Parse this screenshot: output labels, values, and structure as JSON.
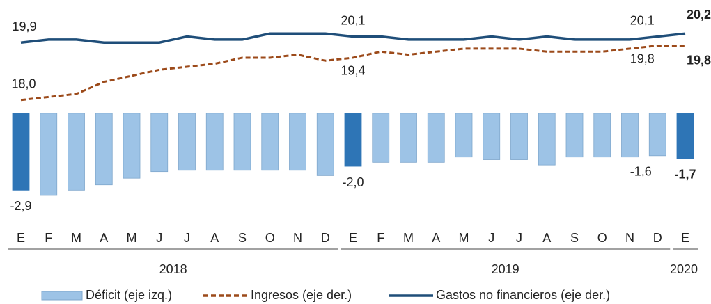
{
  "chart_data": {
    "type": "bar-line",
    "categories": [
      "E",
      "F",
      "M",
      "A",
      "M",
      "J",
      "J",
      "A",
      "S",
      "O",
      "N",
      "D",
      "E",
      "F",
      "M",
      "A",
      "M",
      "J",
      "J",
      "A",
      "S",
      "O",
      "N",
      "D",
      "E"
    ],
    "groups": [
      {
        "label": "2018",
        "span": 12
      },
      {
        "label": "2019",
        "span": 12
      },
      {
        "label": "2020",
        "span": 1
      }
    ],
    "ylim": [
      -3.6,
      3.75
    ],
    "y2lim": [
      14.4,
      20.85
    ],
    "series": [
      {
        "name": "Déficit (eje izq.)",
        "type": "bar",
        "color": "#9dc3e6",
        "highlight_color": "#2e75b6",
        "values": [
          -2.9,
          -3.1,
          -2.9,
          -2.7,
          -2.45,
          -2.2,
          -2.15,
          -2.15,
          -2.15,
          -2.15,
          -2.15,
          -2.35,
          -2.0,
          -1.85,
          -1.85,
          -1.85,
          -1.65,
          -1.75,
          -1.75,
          -1.95,
          -1.65,
          -1.65,
          -1.65,
          -1.6,
          -1.7
        ],
        "value_labels": [
          "-2,9",
          null,
          null,
          null,
          null,
          null,
          null,
          null,
          null,
          null,
          null,
          null,
          "-2,0",
          null,
          null,
          null,
          null,
          null,
          null,
          null,
          null,
          null,
          null,
          "-1,6",
          "-1,7"
        ]
      },
      {
        "name": "Ingresos (eje der.)",
        "type": "line",
        "axis": "y2",
        "color": "#9c4a1a",
        "dashed": true,
        "values": [
          18.0,
          18.1,
          18.2,
          18.6,
          18.8,
          19.0,
          19.1,
          19.2,
          19.4,
          19.4,
          19.5,
          19.3,
          19.4,
          19.6,
          19.5,
          19.6,
          19.7,
          19.7,
          19.7,
          19.6,
          19.6,
          19.6,
          19.7,
          19.8,
          19.8
        ],
        "value_labels": [
          "18,0",
          null,
          null,
          null,
          null,
          null,
          null,
          null,
          null,
          null,
          null,
          null,
          "19,4",
          null,
          null,
          null,
          null,
          null,
          null,
          null,
          null,
          null,
          null,
          "19,8",
          "19,8"
        ]
      },
      {
        "name": "Gastos no financieros (eje der.)",
        "type": "line",
        "axis": "y2",
        "color": "#1f4e79",
        "dashed": false,
        "values": [
          19.9,
          20.0,
          20.0,
          19.9,
          19.9,
          19.9,
          20.1,
          20.0,
          20.0,
          20.2,
          20.2,
          20.2,
          20.1,
          20.1,
          20.0,
          20.0,
          20.0,
          20.1,
          20.0,
          20.1,
          20.0,
          20.0,
          20.0,
          20.1,
          20.2
        ],
        "value_labels": [
          "19,9",
          null,
          null,
          null,
          null,
          null,
          null,
          null,
          null,
          null,
          null,
          null,
          "20,1",
          null,
          null,
          null,
          null,
          null,
          null,
          null,
          null,
          null,
          null,
          "20,1",
          "20,2"
        ]
      }
    ]
  }
}
